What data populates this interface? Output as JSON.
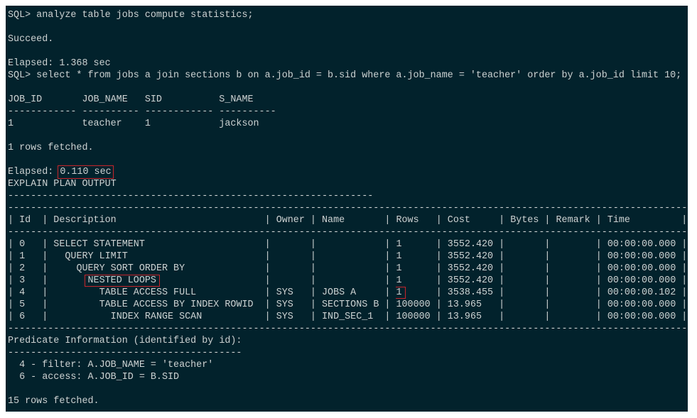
{
  "terminal": {
    "cmd1": "SQL> analyze table jobs compute statistics;",
    "succeed": "Succeed.",
    "elapsed1": "Elapsed: 1.368 sec",
    "cmd2": "SQL> select * from jobs a join sections b on a.job_id = b.sid where a.job_name = 'teacher' order by a.job_id limit 10;",
    "result": {
      "columns": [
        "JOB_ID",
        "JOB_NAME",
        "SID",
        "S_NAME"
      ],
      "dashes": [
        "------------",
        "----------",
        "------------",
        "----------"
      ],
      "rows": [
        [
          "1",
          "teacher",
          "1",
          "jackson"
        ]
      ]
    },
    "fetched1": "1 rows fetched.",
    "elapsed2_label": "Elapsed: ",
    "elapsed2_value": "0.110 sec",
    "plan_title": "EXPLAIN PLAN OUTPUT",
    "plan": {
      "headers": [
        "Id",
        "Description",
        "Owner",
        "Name",
        "Rows",
        "Cost",
        "Bytes",
        "Remark",
        "Time"
      ],
      "rows": [
        {
          "id": "0",
          "level": 0,
          "desc": "SELECT STATEMENT",
          "owner": "",
          "name": "",
          "rows": "1",
          "cost": "3552.420",
          "bytes": "",
          "remark": "",
          "time": "00:00:00.000"
        },
        {
          "id": "1",
          "level": 1,
          "desc": "QUERY LIMIT",
          "owner": "",
          "name": "",
          "rows": "1",
          "cost": "3552.420",
          "bytes": "",
          "remark": "",
          "time": "00:00:00.000"
        },
        {
          "id": "2",
          "level": 2,
          "desc": "QUERY SORT ORDER BY",
          "owner": "",
          "name": "",
          "rows": "1",
          "cost": "3552.420",
          "bytes": "",
          "remark": "",
          "time": "00:00:00.000"
        },
        {
          "id": "3",
          "level": 3,
          "desc": "NESTED LOOPS",
          "owner": "",
          "name": "",
          "rows": "1",
          "cost": "3552.420",
          "bytes": "",
          "remark": "",
          "time": "00:00:00.000",
          "highlight": "desc"
        },
        {
          "id": "4",
          "level": 4,
          "desc": "TABLE ACCESS FULL",
          "owner": "SYS",
          "name": "JOBS A",
          "rows": "1",
          "cost": "3538.455",
          "bytes": "",
          "remark": "",
          "time": "00:00:00.102",
          "highlight": "rows"
        },
        {
          "id": "5",
          "level": 4,
          "desc": "TABLE ACCESS BY INDEX ROWID",
          "owner": "SYS",
          "name": "SECTIONS B",
          "rows": "100000",
          "cost": "13.965",
          "bytes": "",
          "remark": "",
          "time": "00:00:00.000"
        },
        {
          "id": "6",
          "level": 5,
          "desc": "INDEX RANGE SCAN",
          "owner": "SYS",
          "name": "IND_SEC_1",
          "rows": "100000",
          "cost": "13.965",
          "bytes": "",
          "remark": "",
          "time": "00:00:00.000"
        }
      ]
    },
    "predicate_title": "Predicate Information (identified by id):",
    "predicates": [
      "  4 - filter: A.JOB_NAME = 'teacher'",
      "  6 - access: A.JOB_ID = B.SID"
    ],
    "fetched2": "15 rows fetched.",
    "highlight_color": "#c8252b"
  }
}
